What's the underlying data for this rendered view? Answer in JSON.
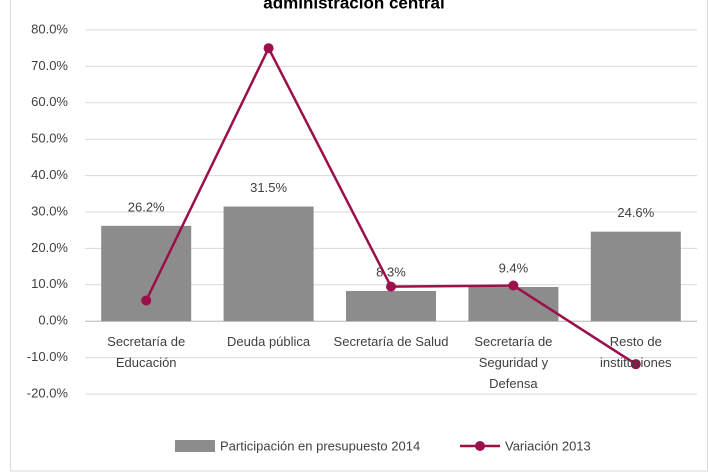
{
  "chart_data": {
    "type": "bar_line",
    "title": "administración central",
    "categories": [
      "Secretaría de Educación",
      "Deuda pública",
      "Secretaría de Salud",
      "Secretaría de Seguridad y Defensa",
      "Resto de instituciones"
    ],
    "series": [
      {
        "name": "Participación en presupuesto 2014",
        "type": "bar",
        "color": "#8c8c8c",
        "values": [
          26.2,
          31.5,
          8.3,
          9.4,
          24.6
        ],
        "value_labels": [
          "26.2%",
          "31.5%",
          "8.3%",
          "9.4%",
          "24.6%"
        ]
      },
      {
        "name": "Variación 2013",
        "type": "line",
        "color": "#9b0f4b",
        "values": [
          5.7,
          75.0,
          9.5,
          9.8,
          -11.8
        ]
      }
    ],
    "ylim": [
      -20,
      80
    ],
    "yticks": [
      {
        "value": -20,
        "label": "-20.0%"
      },
      {
        "value": -10,
        "label": "-10.0%"
      },
      {
        "value": 0,
        "label": "0.0%"
      },
      {
        "value": 10,
        "label": "10.0%"
      },
      {
        "value": 20,
        "label": "20.0%"
      },
      {
        "value": 30,
        "label": "30.0%"
      },
      {
        "value": 40,
        "label": "40.0%"
      },
      {
        "value": 50,
        "label": "50.0%"
      },
      {
        "value": 60,
        "label": "60.0%"
      },
      {
        "value": 70,
        "label": "70.0%"
      },
      {
        "value": 80,
        "label": "80.0%"
      }
    ],
    "legend": "bottom"
  }
}
